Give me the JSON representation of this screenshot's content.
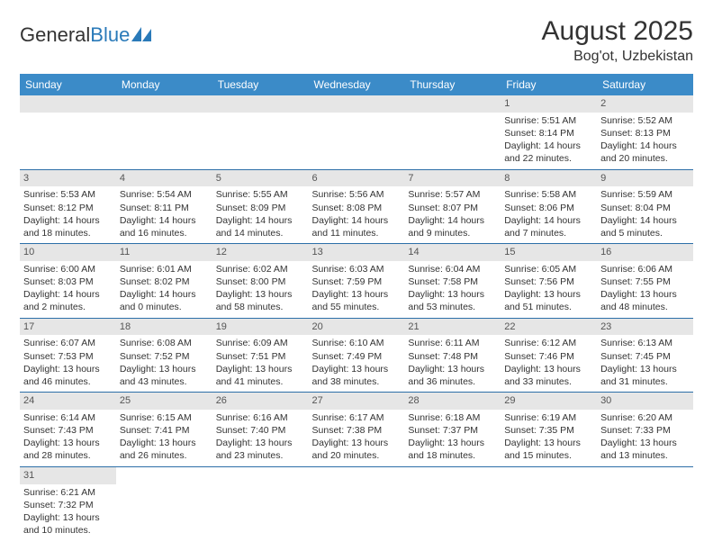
{
  "logo": {
    "text1": "General",
    "text2": "Blue"
  },
  "title": "August 2025",
  "location": "Bog'ot, Uzbekistan",
  "colors": {
    "header_bg": "#3b8bc8",
    "header_text": "#ffffff",
    "daynum_bg": "#e6e6e6",
    "row_border": "#2d6fa8",
    "body_text": "#333333",
    "logo_blue": "#2a7ab9"
  },
  "daysOfWeek": [
    "Sunday",
    "Monday",
    "Tuesday",
    "Wednesday",
    "Thursday",
    "Friday",
    "Saturday"
  ],
  "weeks": [
    [
      null,
      null,
      null,
      null,
      null,
      {
        "n": "1",
        "sunrise": "Sunrise: 5:51 AM",
        "sunset": "Sunset: 8:14 PM",
        "daylight": "Daylight: 14 hours and 22 minutes."
      },
      {
        "n": "2",
        "sunrise": "Sunrise: 5:52 AM",
        "sunset": "Sunset: 8:13 PM",
        "daylight": "Daylight: 14 hours and 20 minutes."
      }
    ],
    [
      {
        "n": "3",
        "sunrise": "Sunrise: 5:53 AM",
        "sunset": "Sunset: 8:12 PM",
        "daylight": "Daylight: 14 hours and 18 minutes."
      },
      {
        "n": "4",
        "sunrise": "Sunrise: 5:54 AM",
        "sunset": "Sunset: 8:11 PM",
        "daylight": "Daylight: 14 hours and 16 minutes."
      },
      {
        "n": "5",
        "sunrise": "Sunrise: 5:55 AM",
        "sunset": "Sunset: 8:09 PM",
        "daylight": "Daylight: 14 hours and 14 minutes."
      },
      {
        "n": "6",
        "sunrise": "Sunrise: 5:56 AM",
        "sunset": "Sunset: 8:08 PM",
        "daylight": "Daylight: 14 hours and 11 minutes."
      },
      {
        "n": "7",
        "sunrise": "Sunrise: 5:57 AM",
        "sunset": "Sunset: 8:07 PM",
        "daylight": "Daylight: 14 hours and 9 minutes."
      },
      {
        "n": "8",
        "sunrise": "Sunrise: 5:58 AM",
        "sunset": "Sunset: 8:06 PM",
        "daylight": "Daylight: 14 hours and 7 minutes."
      },
      {
        "n": "9",
        "sunrise": "Sunrise: 5:59 AM",
        "sunset": "Sunset: 8:04 PM",
        "daylight": "Daylight: 14 hours and 5 minutes."
      }
    ],
    [
      {
        "n": "10",
        "sunrise": "Sunrise: 6:00 AM",
        "sunset": "Sunset: 8:03 PM",
        "daylight": "Daylight: 14 hours and 2 minutes."
      },
      {
        "n": "11",
        "sunrise": "Sunrise: 6:01 AM",
        "sunset": "Sunset: 8:02 PM",
        "daylight": "Daylight: 14 hours and 0 minutes."
      },
      {
        "n": "12",
        "sunrise": "Sunrise: 6:02 AM",
        "sunset": "Sunset: 8:00 PM",
        "daylight": "Daylight: 13 hours and 58 minutes."
      },
      {
        "n": "13",
        "sunrise": "Sunrise: 6:03 AM",
        "sunset": "Sunset: 7:59 PM",
        "daylight": "Daylight: 13 hours and 55 minutes."
      },
      {
        "n": "14",
        "sunrise": "Sunrise: 6:04 AM",
        "sunset": "Sunset: 7:58 PM",
        "daylight": "Daylight: 13 hours and 53 minutes."
      },
      {
        "n": "15",
        "sunrise": "Sunrise: 6:05 AM",
        "sunset": "Sunset: 7:56 PM",
        "daylight": "Daylight: 13 hours and 51 minutes."
      },
      {
        "n": "16",
        "sunrise": "Sunrise: 6:06 AM",
        "sunset": "Sunset: 7:55 PM",
        "daylight": "Daylight: 13 hours and 48 minutes."
      }
    ],
    [
      {
        "n": "17",
        "sunrise": "Sunrise: 6:07 AM",
        "sunset": "Sunset: 7:53 PM",
        "daylight": "Daylight: 13 hours and 46 minutes."
      },
      {
        "n": "18",
        "sunrise": "Sunrise: 6:08 AM",
        "sunset": "Sunset: 7:52 PM",
        "daylight": "Daylight: 13 hours and 43 minutes."
      },
      {
        "n": "19",
        "sunrise": "Sunrise: 6:09 AM",
        "sunset": "Sunset: 7:51 PM",
        "daylight": "Daylight: 13 hours and 41 minutes."
      },
      {
        "n": "20",
        "sunrise": "Sunrise: 6:10 AM",
        "sunset": "Sunset: 7:49 PM",
        "daylight": "Daylight: 13 hours and 38 minutes."
      },
      {
        "n": "21",
        "sunrise": "Sunrise: 6:11 AM",
        "sunset": "Sunset: 7:48 PM",
        "daylight": "Daylight: 13 hours and 36 minutes."
      },
      {
        "n": "22",
        "sunrise": "Sunrise: 6:12 AM",
        "sunset": "Sunset: 7:46 PM",
        "daylight": "Daylight: 13 hours and 33 minutes."
      },
      {
        "n": "23",
        "sunrise": "Sunrise: 6:13 AM",
        "sunset": "Sunset: 7:45 PM",
        "daylight": "Daylight: 13 hours and 31 minutes."
      }
    ],
    [
      {
        "n": "24",
        "sunrise": "Sunrise: 6:14 AM",
        "sunset": "Sunset: 7:43 PM",
        "daylight": "Daylight: 13 hours and 28 minutes."
      },
      {
        "n": "25",
        "sunrise": "Sunrise: 6:15 AM",
        "sunset": "Sunset: 7:41 PM",
        "daylight": "Daylight: 13 hours and 26 minutes."
      },
      {
        "n": "26",
        "sunrise": "Sunrise: 6:16 AM",
        "sunset": "Sunset: 7:40 PM",
        "daylight": "Daylight: 13 hours and 23 minutes."
      },
      {
        "n": "27",
        "sunrise": "Sunrise: 6:17 AM",
        "sunset": "Sunset: 7:38 PM",
        "daylight": "Daylight: 13 hours and 20 minutes."
      },
      {
        "n": "28",
        "sunrise": "Sunrise: 6:18 AM",
        "sunset": "Sunset: 7:37 PM",
        "daylight": "Daylight: 13 hours and 18 minutes."
      },
      {
        "n": "29",
        "sunrise": "Sunrise: 6:19 AM",
        "sunset": "Sunset: 7:35 PM",
        "daylight": "Daylight: 13 hours and 15 minutes."
      },
      {
        "n": "30",
        "sunrise": "Sunrise: 6:20 AM",
        "sunset": "Sunset: 7:33 PM",
        "daylight": "Daylight: 13 hours and 13 minutes."
      }
    ],
    [
      {
        "n": "31",
        "sunrise": "Sunrise: 6:21 AM",
        "sunset": "Sunset: 7:32 PM",
        "daylight": "Daylight: 13 hours and 10 minutes."
      },
      null,
      null,
      null,
      null,
      null,
      null
    ]
  ]
}
